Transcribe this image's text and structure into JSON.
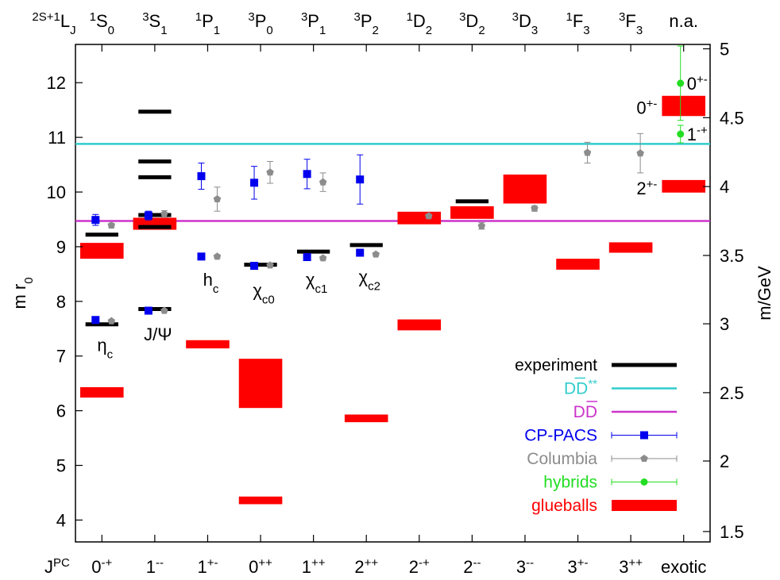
{
  "chart_data": {
    "type": "scatter",
    "ylabel_left": "m r",
    "ylabel_left_sub": "0",
    "ylabel_right": "m/GeV",
    "top_axis_title": {
      "sup": "2S+1",
      "main": "L",
      "sub": "J"
    },
    "bottom_axis_title": {
      "main": "J",
      "sup": "PC"
    },
    "ylim": [
      3.6,
      12.7
    ],
    "yticks_left": [
      4,
      5,
      6,
      7,
      8,
      9,
      10,
      11,
      12
    ],
    "yticks_right": [
      {
        "label": "1.5",
        "r0": 3.79
      },
      {
        "label": "2",
        "r0": 5.08
      },
      {
        "label": "2.5",
        "r0": 6.33
      },
      {
        "label": "3",
        "r0": 7.59
      },
      {
        "label": "3.5",
        "r0": 8.84
      },
      {
        "label": "4",
        "r0": 10.1
      },
      {
        "label": "4.5",
        "r0": 11.36
      },
      {
        "label": "5",
        "r0": 12.62
      }
    ],
    "categories_bottom": [
      {
        "main": "0",
        "sup": "-+"
      },
      {
        "main": "1",
        "sup": "--"
      },
      {
        "main": "1",
        "sup": "+-"
      },
      {
        "main": "0",
        "sup": "++"
      },
      {
        "main": "1",
        "sup": "++"
      },
      {
        "main": "2",
        "sup": "++"
      },
      {
        "main": "2",
        "sup": "-+"
      },
      {
        "main": "2",
        "sup": "--"
      },
      {
        "main": "3",
        "sup": "--"
      },
      {
        "main": "3",
        "sup": "+-"
      },
      {
        "main": "3",
        "sup": "++"
      },
      {
        "main": "exotic",
        "sup": ""
      }
    ],
    "categories_top": [
      {
        "sup": "1",
        "main": "S",
        "sub": "0"
      },
      {
        "sup": "3",
        "main": "S",
        "sub": "1"
      },
      {
        "sup": "1",
        "main": "P",
        "sub": "1"
      },
      {
        "sup": "3",
        "main": "P",
        "sub": "0"
      },
      {
        "sup": "3",
        "main": "P",
        "sub": "1"
      },
      {
        "sup": "3",
        "main": "P",
        "sub": "2"
      },
      {
        "sup": "1",
        "main": "D",
        "sub": "2"
      },
      {
        "sup": "3",
        "main": "D",
        "sub": "2"
      },
      {
        "sup": "3",
        "main": "D",
        "sub": "3"
      },
      {
        "sup": "1",
        "main": "F",
        "sub": "3"
      },
      {
        "sup": "3",
        "main": "F",
        "sub": "3"
      },
      {
        "sup": "",
        "main": "n.a.",
        "sub": ""
      }
    ],
    "thresholds": [
      {
        "name": "DD**",
        "value": 10.88,
        "color": "#33cccc"
      },
      {
        "name": "DD",
        "value": 9.47,
        "color": "#cc33cc"
      }
    ],
    "experiment": [
      {
        "cat": 0,
        "value": 7.58
      },
      {
        "cat": 0,
        "value": 9.22
      },
      {
        "cat": 1,
        "value": 7.86
      },
      {
        "cat": 1,
        "value": 9.36
      },
      {
        "cat": 1,
        "value": 9.58
      },
      {
        "cat": 1,
        "value": 10.27
      },
      {
        "cat": 1,
        "value": 10.56
      },
      {
        "cat": 1,
        "value": 11.47
      },
      {
        "cat": 3,
        "value": 8.67
      },
      {
        "cat": 4,
        "value": 8.91
      },
      {
        "cat": 5,
        "value": 9.03
      },
      {
        "cat": 7,
        "value": 9.83
      }
    ],
    "cp_pacs": [
      {
        "cat": 0,
        "value": 7.66,
        "err": 0.03
      },
      {
        "cat": 0,
        "value": 9.49,
        "err": 0.1
      },
      {
        "cat": 1,
        "value": 7.83,
        "err": 0.03
      },
      {
        "cat": 1,
        "value": 9.57,
        "err": 0.08
      },
      {
        "cat": 2,
        "value": 8.82,
        "err": 0.03
      },
      {
        "cat": 2,
        "value": 10.29,
        "err": 0.24
      },
      {
        "cat": 3,
        "value": 8.65,
        "err": 0.03
      },
      {
        "cat": 3,
        "value": 10.17,
        "err": 0.3
      },
      {
        "cat": 4,
        "value": 8.81,
        "err": 0.03
      },
      {
        "cat": 4,
        "value": 10.33,
        "err": 0.27
      },
      {
        "cat": 5,
        "value": 8.89,
        "err": 0.03
      },
      {
        "cat": 5,
        "value": 10.23,
        "err": 0.45
      }
    ],
    "columbia": [
      {
        "cat": 0,
        "value": 7.64,
        "err": 0.02
      },
      {
        "cat": 0,
        "value": 9.39,
        "err": 0.04
      },
      {
        "cat": 1,
        "value": 7.83,
        "err": 0.02
      },
      {
        "cat": 1,
        "value": 9.6,
        "err": 0.06
      },
      {
        "cat": 2,
        "value": 8.82,
        "err": 0.03
      },
      {
        "cat": 2,
        "value": 9.87,
        "err": 0.22
      },
      {
        "cat": 3,
        "value": 8.66,
        "err": 0.03
      },
      {
        "cat": 3,
        "value": 10.36,
        "err": 0.2
      },
      {
        "cat": 4,
        "value": 8.79,
        "err": 0.03
      },
      {
        "cat": 4,
        "value": 10.18,
        "err": 0.17
      },
      {
        "cat": 5,
        "value": 8.86,
        "err": 0.03
      },
      {
        "cat": 6,
        "value": 9.56,
        "err": 0.03
      },
      {
        "cat": 7,
        "value": 9.38,
        "err": 0.06
      },
      {
        "cat": 8,
        "value": 9.7,
        "err": 0.05
      },
      {
        "cat": 9,
        "value": 10.72,
        "err": 0.19
      },
      {
        "cat": 10,
        "value": 10.71,
        "err": 0.36
      }
    ],
    "hybrids": [
      {
        "cat": 11,
        "value": 11.99,
        "err": 0.68,
        "label": "0+-"
      },
      {
        "cat": 11,
        "value": 11.06,
        "err": 0.16,
        "label": "1-+"
      }
    ],
    "glueballs": [
      {
        "cat": 0,
        "low": 8.78,
        "high": 9.07
      },
      {
        "cat": 0,
        "low": 6.24,
        "high": 6.43
      },
      {
        "cat": 1,
        "low": 9.31,
        "high": 9.53
      },
      {
        "cat": 2,
        "low": 7.14,
        "high": 7.29
      },
      {
        "cat": 3,
        "low": 6.05,
        "high": 6.95
      },
      {
        "cat": 3,
        "low": 4.29,
        "high": 4.43
      },
      {
        "cat": 4,
        "low": 9.6,
        "high": 9.6,
        "hidden": true
      },
      {
        "cat": 5,
        "low": 5.79,
        "high": 5.93
      },
      {
        "cat": 6,
        "low": 9.41,
        "high": 9.64
      },
      {
        "cat": 6,
        "low": 7.47,
        "high": 7.67
      },
      {
        "cat": 7,
        "low": 9.51,
        "high": 9.74
      },
      {
        "cat": 8,
        "low": 9.79,
        "high": 10.32
      },
      {
        "cat": 9,
        "low": 8.58,
        "high": 8.78
      },
      {
        "cat": 10,
        "low": 8.89,
        "high": 9.08
      },
      {
        "cat": 11,
        "low": 11.39,
        "high": 11.76,
        "label": "0+-"
      },
      {
        "cat": 11,
        "low": 9.99,
        "high": 10.22,
        "label": "2+-"
      }
    ],
    "annotations": [
      {
        "text": "η",
        "sub": "c",
        "cat": 0,
        "value": 7.35
      },
      {
        "text": "J/Ψ",
        "sub": "",
        "cat": 1,
        "value": 7.55
      },
      {
        "text": "h",
        "sub": "c",
        "cat": 2,
        "value": 8.55
      },
      {
        "text": "χ",
        "sub": "c0",
        "cat": 3,
        "value": 8.35
      },
      {
        "text": "χ",
        "sub": "c1",
        "cat": 4,
        "value": 8.55
      },
      {
        "text": "χ",
        "sub": "c2",
        "cat": 5,
        "value": 8.6
      }
    ],
    "legend": {
      "position": "bottom-right",
      "entries": [
        {
          "label": "experiment",
          "color": "#000000",
          "kind": "line"
        },
        {
          "label": "DD",
          "label_sup": "**",
          "overline": true,
          "color": "#33cccc",
          "kind": "line"
        },
        {
          "label": "DD",
          "overline": true,
          "color": "#cc33cc",
          "kind": "line"
        },
        {
          "label": "CP-PACS",
          "color": "#0000ee",
          "kind": "square"
        },
        {
          "label": "Columbia",
          "color": "#8c8c8c",
          "kind": "pentagon"
        },
        {
          "label": "hybrids",
          "color": "#22dd22",
          "kind": "circle"
        },
        {
          "label": "glueballs",
          "color": "#ff0000",
          "kind": "box"
        }
      ]
    },
    "colors": {
      "experiment": "#000000",
      "cp_pacs": "#0000ee",
      "columbia": "#8c8c8c",
      "hybrids": "#22dd22",
      "glueballs": "#ff0000",
      "ddstar": "#33cccc",
      "dd": "#cc33cc"
    }
  }
}
